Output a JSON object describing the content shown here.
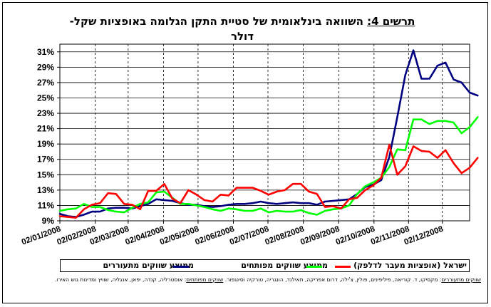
{
  "title": {
    "label": "תרשים 4:",
    "line1": "השוואה בינלאומית של סטיית התקן הגלומה באופציות שקל-",
    "line2": "דולר"
  },
  "legend": {
    "israel": "ישראל (אופציות מעבר לדלפק)",
    "developed": "ממוצע שווקים מפותחים",
    "emerging": "ממוצע שווקים מתעוררים"
  },
  "footnote": {
    "emerging_label": "שווקים מתעוררים",
    "emerging_text": ": מקסיקו, ד. קוריאה, פיליפינים, פולין, צ'ילה, דרום אפריקה, תאילנד, הונגריה, טורקיה וסינגפור.",
    "developed_label": "שווקים מפותחים",
    "developed_text": ": אוסטרליה, קנדה, יפאן, אנגליה, שוויץ ומדינות גוש האירו."
  },
  "colors": {
    "israel": "#ff0000",
    "developed": "#00ff00",
    "emerging": "#000080",
    "grid": "#000000"
  },
  "chart_data": {
    "type": "line",
    "title": "השוואה בינלאומית של סטיית התקן הגלומה באופציות שקל-דולר",
    "xlabel": "",
    "ylabel": "",
    "ylim": [
      9,
      32
    ],
    "xlim": [
      0,
      51
    ],
    "x_ticks": [
      "02/01/2008",
      "02/02/2008",
      "02/03/2008",
      "02/04/2008",
      "02/05/2008",
      "02/06/2008",
      "02/07/2008",
      "02/08/2008",
      "02/09/2008",
      "02/10/2008",
      "02/11/2008",
      "02/12/2008"
    ],
    "y_ticks": [
      "9%",
      "11%",
      "13%",
      "15%",
      "17%",
      "19%",
      "21%",
      "23%",
      "25%",
      "27%",
      "29%",
      "31%"
    ],
    "y_tick_values": [
      9,
      11,
      13,
      15,
      17,
      19,
      21,
      23,
      25,
      27,
      29,
      31
    ],
    "x_tick_index": [
      0,
      4.4,
      8.5,
      12.9,
      17.2,
      21.6,
      25.9,
      30.3,
      34.7,
      39.1,
      43.4,
      47.6
    ],
    "grid": true,
    "legend_position": "bottom",
    "series": [
      {
        "name": "ממוצע שווקים מתעוררים",
        "key": "emerging",
        "values": [
          9.9,
          9.6,
          9.5,
          9.8,
          10.2,
          10.2,
          10.6,
          10.7,
          10.7,
          10.6,
          10.9,
          11.2,
          11.8,
          11.7,
          11.6,
          11.3,
          11.1,
          11.1,
          10.9,
          10.8,
          10.9,
          11.1,
          11.2,
          11.2,
          11.3,
          11.5,
          11.3,
          11.2,
          11.3,
          11.4,
          11.3,
          11.3,
          11.1,
          11.5,
          11.6,
          11.7,
          11.8,
          12.5,
          13.4,
          13.7,
          14.3,
          17.3,
          22.5,
          28.0,
          31.2,
          27.5,
          27.5,
          29.2,
          29.6,
          27.4,
          27.0,
          25.7,
          25.3
        ]
      },
      {
        "name": "ממוצע שווקים מפותחים",
        "key": "developed",
        "values": [
          10.3,
          10.5,
          10.6,
          11.2,
          10.8,
          10.8,
          10.4,
          10.2,
          10.1,
          10.7,
          11.2,
          11.4,
          12.7,
          12.8,
          12.0,
          11.2,
          11.2,
          11.0,
          10.8,
          10.5,
          10.3,
          10.6,
          10.5,
          10.3,
          10.3,
          10.6,
          10.1,
          10.3,
          10.2,
          10.2,
          10.4,
          10.0,
          9.8,
          10.3,
          10.5,
          10.6,
          11.0,
          12.5,
          13.5,
          14.0,
          14.6,
          16.0,
          18.3,
          18.2,
          22.2,
          22.2,
          21.6,
          22.0,
          22.0,
          21.8,
          20.4,
          21.2,
          22.5
        ]
      },
      {
        "name": "ישראל (אופציות מעבר לדלפק)",
        "key": "israel",
        "values": [
          9.6,
          9.5,
          9.4,
          10.5,
          11.1,
          11.3,
          12.6,
          12.5,
          11.2,
          11.1,
          10.5,
          12.9,
          12.9,
          13.8,
          11.9,
          11.3,
          13.0,
          12.4,
          11.7,
          11.5,
          12.4,
          12.3,
          13.3,
          13.3,
          13.3,
          12.9,
          12.4,
          12.8,
          13.0,
          13.8,
          13.8,
          12.8,
          12.5,
          10.8,
          10.9,
          10.6,
          11.8,
          12.0,
          13.0,
          13.6,
          14.6,
          18.9,
          15.0,
          16.1,
          18.7,
          18.1,
          18.0,
          17.2,
          18.2,
          16.5,
          15.2,
          15.9,
          17.2
        ]
      }
    ]
  }
}
